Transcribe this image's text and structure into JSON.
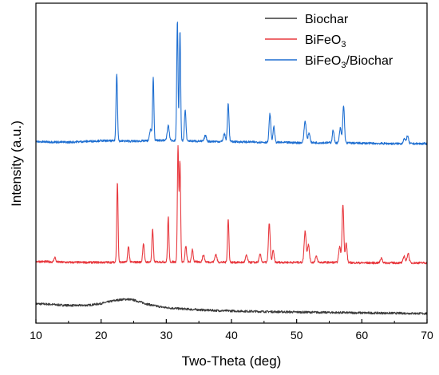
{
  "chart_data": {
    "type": "line",
    "xlabel": "Two-Theta (deg)",
    "ylabel": "Intensity (a.u.)",
    "xlim": [
      10,
      70
    ],
    "xticks": [
      10,
      20,
      30,
      40,
      50,
      60,
      70
    ],
    "y_tick_labels": "none",
    "y_units": "arbitrary, stacked with vertical offsets",
    "grid": false,
    "legend_position": "top-right",
    "series": [
      {
        "name": "Biochar",
        "color": "#3a3a3a",
        "legend": {
          "main": "Biochar"
        },
        "x": [
          10,
          12,
          14,
          16,
          18,
          20,
          22,
          23,
          24,
          25,
          26,
          27,
          28,
          29,
          30,
          32,
          34,
          36,
          38,
          40,
          42,
          45,
          48,
          50,
          55,
          60,
          65,
          70
        ],
        "y": [
          1.0,
          0.95,
          0.86,
          0.82,
          0.85,
          1.02,
          1.32,
          1.42,
          1.46,
          1.38,
          1.18,
          0.98,
          0.82,
          0.7,
          0.6,
          0.5,
          0.42,
          0.35,
          0.3,
          0.27,
          0.24,
          0.2,
          0.17,
          0.15,
          0.11,
          0.07,
          0.04,
          0.0
        ],
        "peaks": []
      },
      {
        "name": "BiFeO3",
        "color": "#e8393f",
        "legend": {
          "main": "BiFeO",
          "sub": "3"
        },
        "x": [
          10,
          15,
          20,
          25,
          30,
          35,
          40,
          45,
          50,
          55,
          60,
          65,
          70
        ],
        "y": [
          0.6,
          0.5,
          0.5,
          0.52,
          0.55,
          0.55,
          0.5,
          0.5,
          0.5,
          0.5,
          0.45,
          0.45,
          0.45
        ],
        "peaks": [
          {
            "x": 12.9,
            "h": 0.5,
            "w": 0.12
          },
          {
            "x": 22.5,
            "h": 8.2,
            "w": 0.1
          },
          {
            "x": 24.2,
            "h": 1.6,
            "w": 0.12
          },
          {
            "x": 26.5,
            "h": 1.9,
            "w": 0.12
          },
          {
            "x": 27.9,
            "h": 3.3,
            "w": 0.11
          },
          {
            "x": 30.3,
            "h": 4.6,
            "w": 0.1
          },
          {
            "x": 31.8,
            "h": 11.8,
            "w": 0.1
          },
          {
            "x": 32.1,
            "h": 10.2,
            "w": 0.1
          },
          {
            "x": 33.0,
            "h": 1.6,
            "w": 0.12
          },
          {
            "x": 34.0,
            "h": 1.3,
            "w": 0.12
          },
          {
            "x": 35.7,
            "h": 0.7,
            "w": 0.15
          },
          {
            "x": 37.6,
            "h": 0.8,
            "w": 0.15
          },
          {
            "x": 39.5,
            "h": 4.4,
            "w": 0.11
          },
          {
            "x": 42.3,
            "h": 0.7,
            "w": 0.15
          },
          {
            "x": 44.4,
            "h": 0.8,
            "w": 0.15
          },
          {
            "x": 45.8,
            "h": 4.0,
            "w": 0.13
          },
          {
            "x": 46.4,
            "h": 1.2,
            "w": 0.13
          },
          {
            "x": 51.3,
            "h": 3.2,
            "w": 0.15
          },
          {
            "x": 51.8,
            "h": 1.8,
            "w": 0.15
          },
          {
            "x": 53.0,
            "h": 0.6,
            "w": 0.15
          },
          {
            "x": 56.6,
            "h": 1.6,
            "w": 0.15
          },
          {
            "x": 57.1,
            "h": 6.0,
            "w": 0.13
          },
          {
            "x": 57.6,
            "h": 2.0,
            "w": 0.13
          },
          {
            "x": 63.0,
            "h": 0.5,
            "w": 0.15
          },
          {
            "x": 66.5,
            "h": 0.7,
            "w": 0.15
          },
          {
            "x": 67.1,
            "h": 1.0,
            "w": 0.15
          }
        ]
      },
      {
        "name": "BiFeO3/Biochar",
        "color": "#1f6fd1",
        "legend": {
          "main": "BiFeO",
          "sub": "3",
          "suffix": "/Biochar"
        },
        "x": [
          10,
          15,
          20,
          25,
          30,
          35,
          40,
          45,
          50,
          55,
          60,
          65,
          70
        ],
        "y": [
          0.6,
          0.55,
          0.7,
          0.65,
          0.75,
          0.65,
          0.6,
          0.55,
          0.5,
          0.5,
          0.45,
          0.4,
          0.4
        ],
        "peaks": [
          {
            "x": 22.4,
            "h": 6.9,
            "w": 0.11
          },
          {
            "x": 27.6,
            "h": 1.2,
            "w": 0.15
          },
          {
            "x": 28.0,
            "h": 6.4,
            "w": 0.1
          },
          {
            "x": 30.3,
            "h": 1.5,
            "w": 0.15
          },
          {
            "x": 31.7,
            "h": 12.2,
            "w": 0.1
          },
          {
            "x": 32.1,
            "h": 11.2,
            "w": 0.1
          },
          {
            "x": 32.9,
            "h": 3.1,
            "w": 0.12
          },
          {
            "x": 36.0,
            "h": 0.6,
            "w": 0.15
          },
          {
            "x": 38.9,
            "h": 0.8,
            "w": 0.15
          },
          {
            "x": 39.5,
            "h": 3.9,
            "w": 0.12
          },
          {
            "x": 45.9,
            "h": 2.9,
            "w": 0.13
          },
          {
            "x": 46.5,
            "h": 1.6,
            "w": 0.13
          },
          {
            "x": 51.3,
            "h": 2.2,
            "w": 0.16
          },
          {
            "x": 51.9,
            "h": 1.0,
            "w": 0.15
          },
          {
            "x": 55.6,
            "h": 1.3,
            "w": 0.13
          },
          {
            "x": 56.7,
            "h": 1.5,
            "w": 0.14
          },
          {
            "x": 57.2,
            "h": 3.8,
            "w": 0.13
          },
          {
            "x": 66.5,
            "h": 0.5,
            "w": 0.15
          },
          {
            "x": 67.0,
            "h": 0.8,
            "w": 0.15
          }
        ]
      }
    ]
  }
}
